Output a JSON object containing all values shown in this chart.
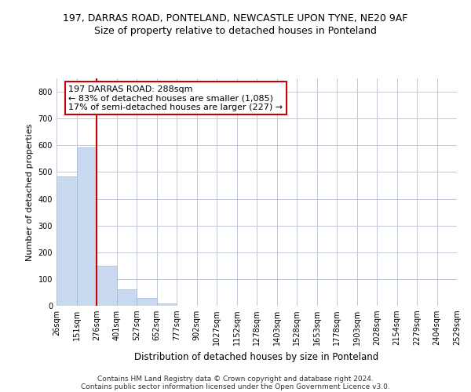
{
  "title1": "197, DARRAS ROAD, PONTELAND, NEWCASTLE UPON TYNE, NE20 9AF",
  "title2": "Size of property relative to detached houses in Ponteland",
  "xlabel": "Distribution of detached houses by size in Ponteland",
  "ylabel": "Number of detached properties",
  "bar_values": [
    485,
    592,
    150,
    62,
    28,
    10,
    0,
    0,
    0,
    0,
    0,
    0,
    0,
    0,
    0,
    0,
    0,
    0,
    0,
    0
  ],
  "bar_labels": [
    "26sqm",
    "151sqm",
    "276sqm",
    "401sqm",
    "527sqm",
    "652sqm",
    "777sqm",
    "902sqm",
    "1027sqm",
    "1152sqm",
    "1278sqm",
    "1403sqm",
    "1528sqm",
    "1653sqm",
    "1778sqm",
    "1903sqm",
    "2028sqm",
    "2154sqm",
    "2279sqm",
    "2404sqm",
    "2529sqm"
  ],
  "bar_color": "#c9d9f0",
  "bar_edge_color": "#a0b8d8",
  "vline_x": 2,
  "vline_color": "#cc0000",
  "annotation_line1": "197 DARRAS ROAD: 288sqm",
  "annotation_line2": "← 83% of detached houses are smaller (1,085)",
  "annotation_line3": "17% of semi-detached houses are larger (227) →",
  "annotation_box_color": "#ffffff",
  "annotation_box_edge": "#cc0000",
  "ylim": [
    0,
    850
  ],
  "yticks": [
    0,
    100,
    200,
    300,
    400,
    500,
    600,
    700,
    800
  ],
  "background_color": "#ffffff",
  "grid_color": "#c0c8d8",
  "footer1": "Contains HM Land Registry data © Crown copyright and database right 2024.",
  "footer2": "Contains public sector information licensed under the Open Government Licence v3.0.",
  "title1_fontsize": 9,
  "title2_fontsize": 9,
  "xlabel_fontsize": 8.5,
  "ylabel_fontsize": 8,
  "tick_fontsize": 7,
  "annotation_fontsize": 8,
  "footer_fontsize": 6.5
}
